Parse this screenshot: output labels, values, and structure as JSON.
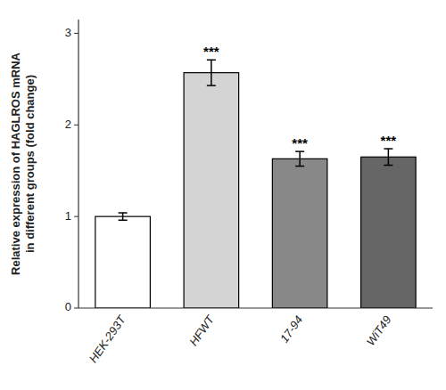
{
  "chart_data": {
    "type": "bar",
    "ylabel": "Relative expression of HAGLROS mRNA\nin different groups (fold change)",
    "categories": [
      "HEK-293T",
      "HFWT",
      "17-94",
      "WiT49"
    ],
    "values": [
      1.0,
      2.57,
      1.63,
      1.65
    ],
    "errors": [
      0.04,
      0.14,
      0.08,
      0.09
    ],
    "colors": [
      "#ffffff",
      "#d4d4d4",
      "#888888",
      "#666666"
    ],
    "annotations": [
      {
        "category": "HFWT",
        "text": "***"
      },
      {
        "category": "17-94",
        "text": "***"
      },
      {
        "category": "WiT49",
        "text": "***"
      }
    ],
    "ylim": [
      0,
      3.15
    ],
    "yticks": [
      0,
      1,
      2,
      3
    ],
    "grid": false
  }
}
